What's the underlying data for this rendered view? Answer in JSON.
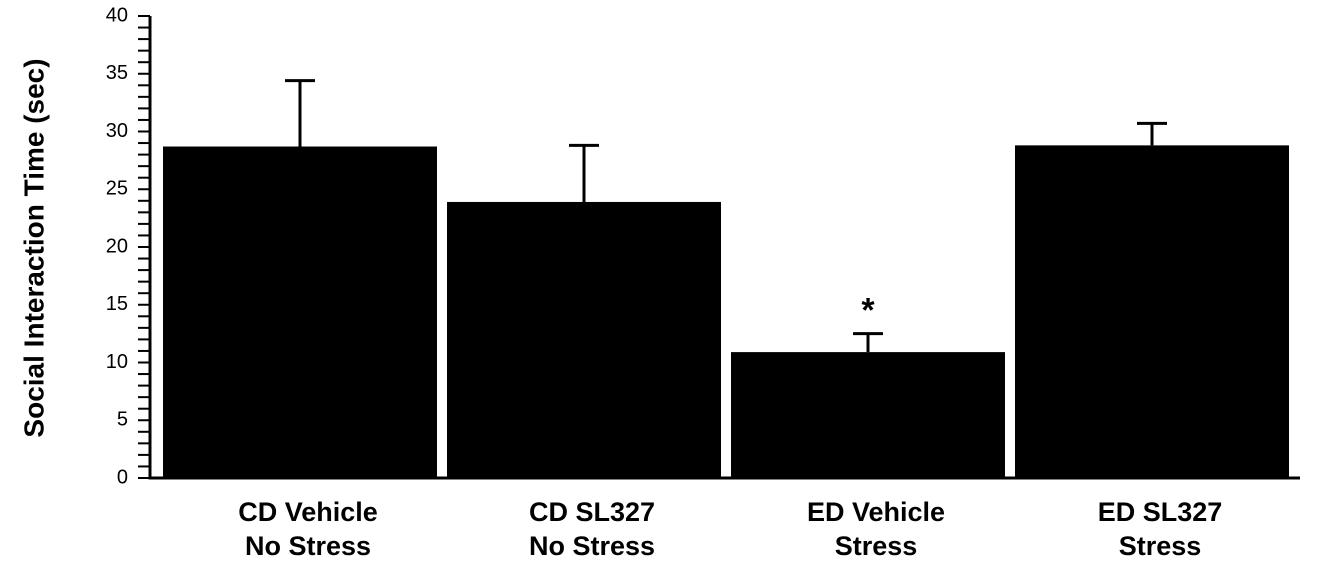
{
  "chart_data": {
    "type": "bar",
    "title": "",
    "xlabel": "",
    "ylabel": "Social Interaction Time (sec)",
    "ylim": [
      0,
      40
    ],
    "yticks": [
      0,
      5,
      10,
      15,
      20,
      25,
      30,
      35,
      40
    ],
    "minor_tick_step": 1,
    "grid": false,
    "legend": "none",
    "bar_color": "#000000",
    "categories": [
      [
        "CD Vehicle",
        "No Stress"
      ],
      [
        "CD SL327",
        "No Stress"
      ],
      [
        "ED Vehicle",
        "Stress"
      ],
      [
        "ED SL327",
        "Stress"
      ]
    ],
    "values": [
      28.7,
      23.9,
      10.9,
      28.8
    ],
    "error_upper": [
      34.4,
      28.8,
      12.5,
      30.7
    ],
    "annotations": [
      "",
      "",
      "*",
      ""
    ]
  }
}
